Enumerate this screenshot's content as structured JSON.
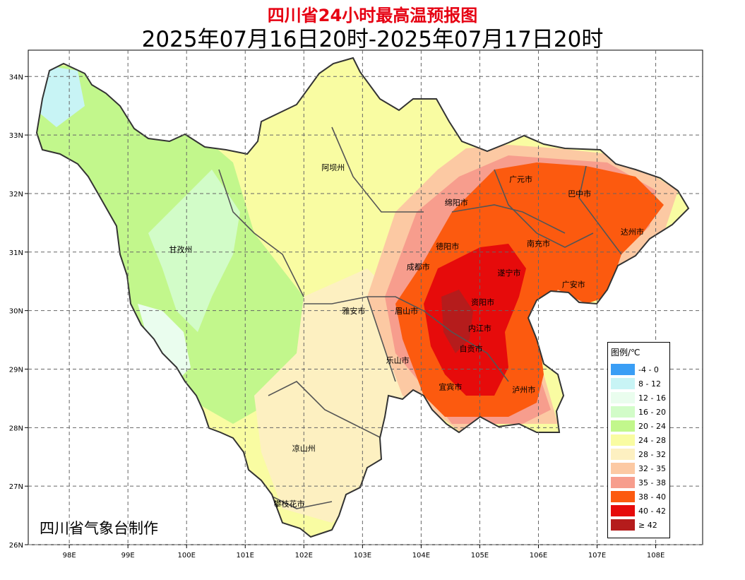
{
  "title": "四川省24小时最高温预报图",
  "subtitle": "2025年07月16日20时-2025年07月17日20时",
  "credit": "四川省气象台制作",
  "axes": {
    "x_ticks": [
      "98E",
      "99E",
      "100E",
      "101E",
      "102E",
      "103E",
      "104E",
      "105E",
      "106E",
      "107E",
      "108E"
    ],
    "y_ticks": [
      "34N",
      "33N",
      "32N",
      "31N",
      "30N",
      "29N",
      "28N",
      "27N",
      "26N"
    ],
    "x_range": [
      97.3,
      108.8
    ],
    "y_range": [
      26.0,
      34.45
    ],
    "grid": true
  },
  "regions": [
    {
      "name": "阿坝州",
      "lon": 102.5,
      "lat": 32.4
    },
    {
      "name": "甘孜州",
      "lon": 99.9,
      "lat": 31.0
    },
    {
      "name": "广元市",
      "lon": 105.7,
      "lat": 32.2
    },
    {
      "name": "巴中市",
      "lon": 106.7,
      "lat": 31.95
    },
    {
      "name": "绵阳市",
      "lon": 104.6,
      "lat": 31.8
    },
    {
      "name": "达州市",
      "lon": 107.6,
      "lat": 31.3
    },
    {
      "name": "德阳市",
      "lon": 104.45,
      "lat": 31.05
    },
    {
      "name": "南充市",
      "lon": 106.0,
      "lat": 31.1
    },
    {
      "name": "成都市",
      "lon": 103.95,
      "lat": 30.7
    },
    {
      "name": "遂宁市",
      "lon": 105.5,
      "lat": 30.6
    },
    {
      "name": "广安市",
      "lon": 106.6,
      "lat": 30.4
    },
    {
      "name": "资阳市",
      "lon": 105.05,
      "lat": 30.1
    },
    {
      "name": "雅安市",
      "lon": 102.85,
      "lat": 29.95
    },
    {
      "name": "眉山市",
      "lon": 103.75,
      "lat": 29.95
    },
    {
      "name": "内江市",
      "lon": 105.0,
      "lat": 29.65
    },
    {
      "name": "自贡市",
      "lon": 104.85,
      "lat": 29.3
    },
    {
      "name": "乐山市",
      "lon": 103.6,
      "lat": 29.1
    },
    {
      "name": "宜宾市",
      "lon": 104.5,
      "lat": 28.65
    },
    {
      "name": "泸州市",
      "lon": 105.75,
      "lat": 28.6
    },
    {
      "name": "凉山州",
      "lon": 102.0,
      "lat": 27.6
    },
    {
      "name": "攀枝花市",
      "lon": 101.75,
      "lat": 26.65
    }
  ],
  "legend": {
    "title": "图例/℃",
    "items": [
      {
        "label": "-4 - 0",
        "color": "#3a9ef5"
      },
      {
        "label": "8 - 12",
        "color": "#c8f4f5"
      },
      {
        "label": "12 - 16",
        "color": "#eafdee"
      },
      {
        "label": "16 - 20",
        "color": "#d2fcc8"
      },
      {
        "label": "20 - 24",
        "color": "#c2f78c"
      },
      {
        "label": "24 - 28",
        "color": "#f9fca2"
      },
      {
        "label": "28 - 32",
        "color": "#fdf0c1"
      },
      {
        "label": "32 - 35",
        "color": "#fcc9a3"
      },
      {
        "label": "35 - 38",
        "color": "#f79d8d"
      },
      {
        "label": "38 - 40",
        "color": "#fc5a0f"
      },
      {
        "label": "40 - 42",
        "color": "#e60b0b"
      },
      {
        "label": "≥ 42",
        "color": "#b51c1c"
      }
    ]
  }
}
